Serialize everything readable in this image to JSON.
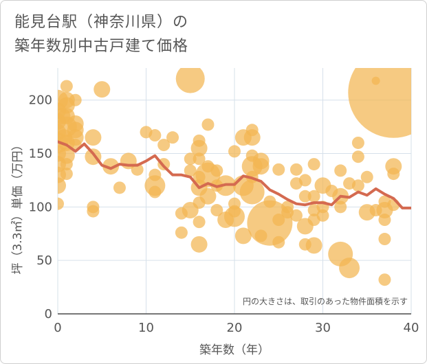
{
  "title_lines": [
    "能見台駅（神奈川県）の",
    "築年数別中古戸建て価格"
  ],
  "chart_data": {
    "type": "scatter",
    "xlabel": "築年数（年）",
    "ylabel": "坪（3.3㎡）単価（万円）",
    "xlim": [
      0,
      40
    ],
    "ylim": [
      0,
      230
    ],
    "x_ticks": [
      "0",
      "10",
      "20",
      "30",
      "40"
    ],
    "y_ticks": [
      "0",
      "50",
      "100",
      "150",
      "200"
    ],
    "grid": true,
    "note": "円の大きさは、取引のあった物件面積を示す",
    "colors": {
      "bubble": "#f2b552",
      "line": "#d46a50"
    },
    "bubbles": [
      {
        "x": 0,
        "y": 200,
        "s": 5
      },
      {
        "x": 0,
        "y": 190,
        "s": 4
      },
      {
        "x": 0,
        "y": 180,
        "s": 4
      },
      {
        "x": 0,
        "y": 170,
        "s": 4
      },
      {
        "x": 0,
        "y": 160,
        "s": 5
      },
      {
        "x": 0,
        "y": 150,
        "s": 4
      },
      {
        "x": 0,
        "y": 140,
        "s": 4
      },
      {
        "x": 0,
        "y": 130,
        "s": 4
      },
      {
        "x": 0,
        "y": 120,
        "s": 4
      },
      {
        "x": 0,
        "y": 103,
        "s": 3
      },
      {
        "x": 0.5,
        "y": 185,
        "s": 4
      },
      {
        "x": 0.7,
        "y": 165,
        "s": 4
      },
      {
        "x": 1,
        "y": 213,
        "s": 3
      },
      {
        "x": 1,
        "y": 200,
        "s": 4
      },
      {
        "x": 1,
        "y": 195,
        "s": 4
      },
      {
        "x": 1,
        "y": 185,
        "s": 4
      },
      {
        "x": 1,
        "y": 175,
        "s": 5
      },
      {
        "x": 1,
        "y": 160,
        "s": 4
      },
      {
        "x": 1,
        "y": 148,
        "s": 4
      },
      {
        "x": 1,
        "y": 140,
        "s": 3
      },
      {
        "x": 1,
        "y": 131,
        "s": 3
      },
      {
        "x": 2,
        "y": 200,
        "s": 3
      },
      {
        "x": 2,
        "y": 178,
        "s": 4
      },
      {
        "x": 2,
        "y": 172,
        "s": 4
      },
      {
        "x": 2,
        "y": 165,
        "s": 4
      },
      {
        "x": 2,
        "y": 158,
        "s": 3
      },
      {
        "x": 4,
        "y": 165,
        "s": 4
      },
      {
        "x": 4,
        "y": 147,
        "s": 4
      },
      {
        "x": 4,
        "y": 100,
        "s": 3
      },
      {
        "x": 4,
        "y": 96,
        "s": 3
      },
      {
        "x": 5,
        "y": 210,
        "s": 4
      },
      {
        "x": 6,
        "y": 138,
        "s": 4
      },
      {
        "x": 7,
        "y": 118,
        "s": 3
      },
      {
        "x": 8,
        "y": 143,
        "s": 4
      },
      {
        "x": 9,
        "y": 135,
        "s": 3
      },
      {
        "x": 10,
        "y": 170,
        "s": 3
      },
      {
        "x": 11,
        "y": 167,
        "s": 3
      },
      {
        "x": 11,
        "y": 130,
        "s": 3
      },
      {
        "x": 11,
        "y": 120,
        "s": 5
      },
      {
        "x": 11,
        "y": 114,
        "s": 3
      },
      {
        "x": 12,
        "y": 158,
        "s": 3
      },
      {
        "x": 12,
        "y": 140,
        "s": 3
      },
      {
        "x": 13,
        "y": 165,
        "s": 3
      },
      {
        "x": 14,
        "y": 94,
        "s": 3
      },
      {
        "x": 14,
        "y": 76,
        "s": 3
      },
      {
        "x": 15,
        "y": 220,
        "s": 7
      },
      {
        "x": 15,
        "y": 145,
        "s": 3
      },
      {
        "x": 15,
        "y": 134,
        "s": 3
      },
      {
        "x": 15,
        "y": 97,
        "s": 4
      },
      {
        "x": 16,
        "y": 162,
        "s": 3
      },
      {
        "x": 16,
        "y": 155,
        "s": 4
      },
      {
        "x": 16,
        "y": 145,
        "s": 3
      },
      {
        "x": 16,
        "y": 128,
        "s": 3
      },
      {
        "x": 16,
        "y": 118,
        "s": 4
      },
      {
        "x": 16,
        "y": 104,
        "s": 3
      },
      {
        "x": 16,
        "y": 86,
        "s": 3
      },
      {
        "x": 16,
        "y": 65,
        "s": 4
      },
      {
        "x": 17,
        "y": 177,
        "s": 3
      },
      {
        "x": 17,
        "y": 138,
        "s": 3
      },
      {
        "x": 17,
        "y": 130,
        "s": 6
      },
      {
        "x": 17,
        "y": 110,
        "s": 4
      },
      {
        "x": 18,
        "y": 134,
        "s": 3
      },
      {
        "x": 18,
        "y": 120,
        "s": 3
      },
      {
        "x": 18,
        "y": 97,
        "s": 3
      },
      {
        "x": 19,
        "y": 120,
        "s": 5
      },
      {
        "x": 19,
        "y": 88,
        "s": 4
      },
      {
        "x": 20,
        "y": 152,
        "s": 3
      },
      {
        "x": 20,
        "y": 103,
        "s": 3
      },
      {
        "x": 20,
        "y": 96,
        "s": 3
      },
      {
        "x": 20,
        "y": 91,
        "s": 5
      },
      {
        "x": 21,
        "y": 165,
        "s": 4
      },
      {
        "x": 21,
        "y": 120,
        "s": 5
      },
      {
        "x": 21,
        "y": 73,
        "s": 4
      },
      {
        "x": 22,
        "y": 172,
        "s": 3
      },
      {
        "x": 22,
        "y": 165,
        "s": 4
      },
      {
        "x": 22,
        "y": 148,
        "s": 3
      },
      {
        "x": 22,
        "y": 138,
        "s": 5
      },
      {
        "x": 22,
        "y": 128,
        "s": 3
      },
      {
        "x": 22,
        "y": 114,
        "s": 6
      },
      {
        "x": 23,
        "y": 143,
        "s": 4
      },
      {
        "x": 23,
        "y": 138,
        "s": 4
      },
      {
        "x": 23,
        "y": 73,
        "s": 3
      },
      {
        "x": 24,
        "y": 85,
        "s": 11
      },
      {
        "x": 24,
        "y": 105,
        "s": 3
      },
      {
        "x": 25,
        "y": 135,
        "s": 3
      },
      {
        "x": 25,
        "y": 88,
        "s": 3
      },
      {
        "x": 25,
        "y": 67,
        "s": 3
      },
      {
        "x": 26,
        "y": 100,
        "s": 3
      },
      {
        "x": 26,
        "y": 95,
        "s": 3
      },
      {
        "x": 27,
        "y": 135,
        "s": 3
      },
      {
        "x": 27,
        "y": 122,
        "s": 3
      },
      {
        "x": 27,
        "y": 92,
        "s": 3
      },
      {
        "x": 28,
        "y": 125,
        "s": 3
      },
      {
        "x": 28,
        "y": 110,
        "s": 3
      },
      {
        "x": 28,
        "y": 82,
        "s": 4
      },
      {
        "x": 28,
        "y": 65,
        "s": 3
      },
      {
        "x": 29,
        "y": 140,
        "s": 3
      },
      {
        "x": 29,
        "y": 110,
        "s": 3
      },
      {
        "x": 29,
        "y": 97,
        "s": 3
      },
      {
        "x": 29,
        "y": 88,
        "s": 3
      },
      {
        "x": 29,
        "y": 64,
        "s": 4
      },
      {
        "x": 30,
        "y": 120,
        "s": 4
      },
      {
        "x": 30,
        "y": 100,
        "s": 3
      },
      {
        "x": 30,
        "y": 92,
        "s": 3
      },
      {
        "x": 31,
        "y": 115,
        "s": 3
      },
      {
        "x": 32,
        "y": 134,
        "s": 3
      },
      {
        "x": 32,
        "y": 110,
        "s": 4
      },
      {
        "x": 32,
        "y": 100,
        "s": 3
      },
      {
        "x": 32,
        "y": 56,
        "s": 6
      },
      {
        "x": 33,
        "y": 122,
        "s": 3
      },
      {
        "x": 33,
        "y": 43,
        "s": 5
      },
      {
        "x": 34,
        "y": 160,
        "s": 3
      },
      {
        "x": 34,
        "y": 147,
        "s": 3
      },
      {
        "x": 34,
        "y": 120,
        "s": 3
      },
      {
        "x": 35,
        "y": 128,
        "s": 3
      },
      {
        "x": 35,
        "y": 95,
        "s": 4
      },
      {
        "x": 36,
        "y": 218,
        "s": 2
      },
      {
        "x": 36,
        "y": 97,
        "s": 3
      },
      {
        "x": 37,
        "y": 105,
        "s": 3
      },
      {
        "x": 37,
        "y": 97,
        "s": 4
      },
      {
        "x": 37,
        "y": 88,
        "s": 3
      },
      {
        "x": 37,
        "y": 70,
        "s": 3
      },
      {
        "x": 37,
        "y": 32,
        "s": 3
      },
      {
        "x": 38,
        "y": 207,
        "s": 22
      },
      {
        "x": 38,
        "y": 138,
        "s": 4
      },
      {
        "x": 38,
        "y": 131,
        "s": 3
      },
      {
        "x": 38,
        "y": 102,
        "s": 3
      }
    ],
    "line": [
      {
        "x": 0,
        "y": 161
      },
      {
        "x": 1,
        "y": 158
      },
      {
        "x": 2,
        "y": 152
      },
      {
        "x": 3,
        "y": 159
      },
      {
        "x": 4,
        "y": 150
      },
      {
        "x": 5,
        "y": 139
      },
      {
        "x": 6,
        "y": 136
      },
      {
        "x": 7,
        "y": 140
      },
      {
        "x": 8,
        "y": 139
      },
      {
        "x": 9,
        "y": 139
      },
      {
        "x": 10,
        "y": 143
      },
      {
        "x": 11,
        "y": 148
      },
      {
        "x": 12,
        "y": 138
      },
      {
        "x": 13,
        "y": 130
      },
      {
        "x": 14,
        "y": 130
      },
      {
        "x": 15,
        "y": 128
      },
      {
        "x": 16,
        "y": 118
      },
      {
        "x": 17,
        "y": 122
      },
      {
        "x": 18,
        "y": 119
      },
      {
        "x": 19,
        "y": 121
      },
      {
        "x": 20,
        "y": 121
      },
      {
        "x": 21,
        "y": 129
      },
      {
        "x": 22,
        "y": 127
      },
      {
        "x": 23,
        "y": 124
      },
      {
        "x": 24,
        "y": 116
      },
      {
        "x": 25,
        "y": 112
      },
      {
        "x": 26,
        "y": 107
      },
      {
        "x": 27,
        "y": 103
      },
      {
        "x": 28,
        "y": 102
      },
      {
        "x": 29,
        "y": 104
      },
      {
        "x": 30,
        "y": 104
      },
      {
        "x": 31,
        "y": 102
      },
      {
        "x": 32,
        "y": 110
      },
      {
        "x": 33,
        "y": 109
      },
      {
        "x": 34,
        "y": 114
      },
      {
        "x": 35,
        "y": 111
      },
      {
        "x": 36,
        "y": 117
      },
      {
        "x": 37,
        "y": 112
      },
      {
        "x": 38,
        "y": 108
      },
      {
        "x": 39,
        "y": 99
      },
      {
        "x": 40,
        "y": 99
      }
    ]
  }
}
